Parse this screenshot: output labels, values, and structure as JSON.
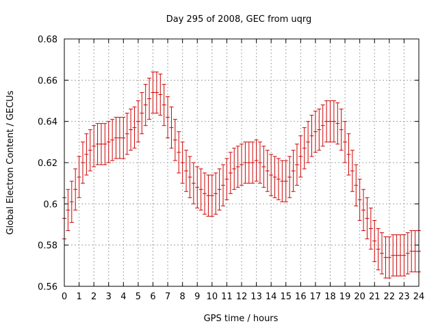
{
  "chart_data": {
    "type": "errorbar",
    "title": "Day 295 of 2008, GEC from uqrg",
    "xlabel": "GPS time / hours",
    "ylabel": "Global Electron Content / GECUs",
    "xlim": [
      0,
      24
    ],
    "ylim": [
      0.56,
      0.68
    ],
    "xticks": [
      "0",
      "1",
      "2",
      "3",
      "4",
      "5",
      "6",
      "7",
      "8",
      "9",
      "10",
      "11",
      "12",
      "13",
      "14",
      "15",
      "16",
      "17",
      "18",
      "19",
      "20",
      "21",
      "22",
      "23",
      "24"
    ],
    "yticks": [
      "0.56",
      "0.58",
      "0.6",
      "0.62",
      "0.64",
      "0.66",
      "0.68"
    ],
    "grid": true,
    "series_color": "#cc0000",
    "error": 0.01,
    "x": [
      0,
      0.25,
      0.5,
      0.75,
      1,
      1.25,
      1.5,
      1.75,
      2,
      2.25,
      2.5,
      2.75,
      3,
      3.25,
      3.5,
      3.75,
      4,
      4.25,
      4.5,
      4.75,
      5,
      5.25,
      5.5,
      5.75,
      6,
      6.25,
      6.5,
      6.75,
      7,
      7.25,
      7.5,
      7.75,
      8,
      8.25,
      8.5,
      8.75,
      9,
      9.25,
      9.5,
      9.75,
      10,
      10.25,
      10.5,
      10.75,
      11,
      11.25,
      11.5,
      11.75,
      12,
      12.25,
      12.5,
      12.75,
      13,
      13.25,
      13.5,
      13.75,
      14,
      14.25,
      14.5,
      14.75,
      15,
      15.25,
      15.5,
      15.75,
      16,
      16.25,
      16.5,
      16.75,
      17,
      17.25,
      17.5,
      17.75,
      18,
      18.25,
      18.5,
      18.75,
      19,
      19.25,
      19.5,
      19.75,
      20,
      20.25,
      20.5,
      20.75,
      21,
      21.25,
      21.5,
      21.75,
      22,
      22.25,
      22.5,
      22.75,
      23,
      23.25,
      23.5,
      23.75,
      24
    ],
    "y": [
      0.593,
      0.597,
      0.601,
      0.607,
      0.613,
      0.62,
      0.624,
      0.626,
      0.628,
      0.629,
      0.629,
      0.629,
      0.63,
      0.631,
      0.632,
      0.632,
      0.632,
      0.634,
      0.636,
      0.637,
      0.64,
      0.644,
      0.648,
      0.651,
      0.654,
      0.654,
      0.653,
      0.648,
      0.642,
      0.637,
      0.631,
      0.625,
      0.62,
      0.616,
      0.613,
      0.61,
      0.608,
      0.607,
      0.605,
      0.604,
      0.604,
      0.605,
      0.607,
      0.609,
      0.612,
      0.615,
      0.617,
      0.618,
      0.619,
      0.62,
      0.62,
      0.62,
      0.621,
      0.62,
      0.618,
      0.616,
      0.614,
      0.613,
      0.612,
      0.611,
      0.611,
      0.613,
      0.616,
      0.619,
      0.623,
      0.627,
      0.63,
      0.633,
      0.635,
      0.636,
      0.638,
      0.64,
      0.64,
      0.64,
      0.639,
      0.636,
      0.63,
      0.624,
      0.616,
      0.609,
      0.602,
      0.597,
      0.593,
      0.588,
      0.582,
      0.578,
      0.576,
      0.574,
      0.574,
      0.575,
      0.575,
      0.575,
      0.575,
      0.576,
      0.577,
      0.577,
      0.577
    ]
  }
}
